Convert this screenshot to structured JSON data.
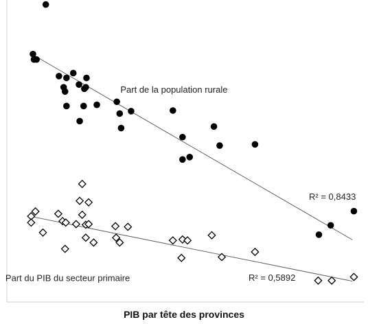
{
  "chart_data": {
    "type": "scatter",
    "title": "",
    "xlabel": "PIB par tête des provinces",
    "ylabel": "",
    "xlim": [
      0,
      100
    ],
    "ylim": [
      0,
      100
    ],
    "grid": false,
    "legend": "none",
    "series": [
      {
        "name": "Part de la population rurale",
        "marker": "filled-circle",
        "color": "#000000",
        "points": [
          [
            10.9,
            98.5
          ],
          [
            7.3,
            82.1
          ],
          [
            7.6,
            80.3
          ],
          [
            8.3,
            80.3
          ],
          [
            14.6,
            74.8
          ],
          [
            18.6,
            75.8
          ],
          [
            16.7,
            74.2
          ],
          [
            22.3,
            74.2
          ],
          [
            15.9,
            71.1
          ],
          [
            20.2,
            72.0
          ],
          [
            21.7,
            70.6
          ],
          [
            16.3,
            69.7
          ],
          [
            22.1,
            71.1
          ],
          [
            25.2,
            65.3
          ],
          [
            16.7,
            64.9
          ],
          [
            21.5,
            64.9
          ],
          [
            30.8,
            66.3
          ],
          [
            34.8,
            63.2
          ],
          [
            31.6,
            62.4
          ],
          [
            20.4,
            59.9
          ],
          [
            32.0,
            57.6
          ],
          [
            46.5,
            63.4
          ],
          [
            58.0,
            58.1
          ],
          [
            49.2,
            54.6
          ],
          [
            69.5,
            52.2
          ],
          [
            59.6,
            51.8
          ],
          [
            51.2,
            48.0
          ],
          [
            49.2,
            47.2
          ],
          [
            97.2,
            30.1
          ],
          [
            90.7,
            25.4
          ],
          [
            87.4,
            22.3
          ]
        ],
        "trend": {
          "from": [
            7.7,
            81.6
          ],
          "to": [
            96.8,
            20.6
          ],
          "r2_label": "R² = 0,8433"
        }
      },
      {
        "name": "Part du PIB du secteur primaire",
        "marker": "open-diamond",
        "color": "#000000",
        "points": [
          [
            21.1,
            39.1
          ],
          [
            20.4,
            33.5
          ],
          [
            22.9,
            33.0
          ],
          [
            8.0,
            30.0
          ],
          [
            6.8,
            28.4
          ],
          [
            6.8,
            26.3
          ],
          [
            14.4,
            29.2
          ],
          [
            21.1,
            28.9
          ],
          [
            15.6,
            26.8
          ],
          [
            16.5,
            26.3
          ],
          [
            19.4,
            25.8
          ],
          [
            22.1,
            25.6
          ],
          [
            22.9,
            25.8
          ],
          [
            30.4,
            25.1
          ],
          [
            33.9,
            24.9
          ],
          [
            10.1,
            23.0
          ],
          [
            22.1,
            21.3
          ],
          [
            30.6,
            21.3
          ],
          [
            24.3,
            19.7
          ],
          [
            31.6,
            19.7
          ],
          [
            16.3,
            17.6
          ],
          [
            46.5,
            20.4
          ],
          [
            49.2,
            20.7
          ],
          [
            50.6,
            20.4
          ],
          [
            57.4,
            22.1
          ],
          [
            60.2,
            14.9
          ],
          [
            69.5,
            16.6
          ],
          [
            48.9,
            14.6
          ],
          [
            87.2,
            7.1
          ],
          [
            91.0,
            7.1
          ],
          [
            97.2,
            8.3
          ]
        ],
        "trend": {
          "from": [
            7.7,
            28.1
          ],
          "to": [
            96.8,
            6.9
          ],
          "r2_label": "R² = 0,5892"
        }
      }
    ],
    "annotations": [
      {
        "text": "Part de la population rurale",
        "at": [
          31.8,
          70.4
        ]
      },
      {
        "text": "Part du PIB du secteur primaire",
        "at": [
          -0.4,
          8.1
        ]
      }
    ]
  }
}
